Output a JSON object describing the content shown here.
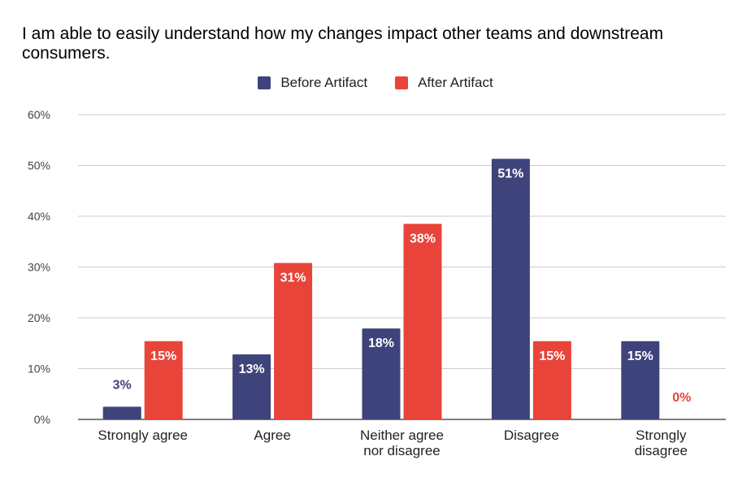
{
  "chart_data": {
    "type": "bar",
    "title": "I am able to easily understand how my changes impact other teams and downstream consumers.",
    "categories": [
      [
        "Strongly agree"
      ],
      [
        "Agree"
      ],
      [
        "Neither agree",
        "nor disagree"
      ],
      [
        "Disagree"
      ],
      [
        "Strongly",
        "disagree"
      ]
    ],
    "series": [
      {
        "name": "Before Artifact",
        "color": "#3f437b",
        "values": [
          2.5,
          12.8,
          17.9,
          51.3,
          15.4
        ],
        "labels": [
          "3%",
          "13%",
          "18%",
          "51%",
          "15%"
        ]
      },
      {
        "name": "After Artifact",
        "color": "#e8443a",
        "values": [
          15.4,
          30.8,
          38.5,
          15.4,
          0
        ],
        "labels": [
          "15%",
          "31%",
          "38%",
          "15%",
          "0%"
        ]
      }
    ],
    "ylim": [
      0,
      60
    ],
    "yticks": [
      "0%",
      "10%",
      "20%",
      "30%",
      "40%",
      "50%",
      "60%"
    ],
    "xlabel": "",
    "ylabel": "",
    "grid": true,
    "legend_position": "top"
  }
}
